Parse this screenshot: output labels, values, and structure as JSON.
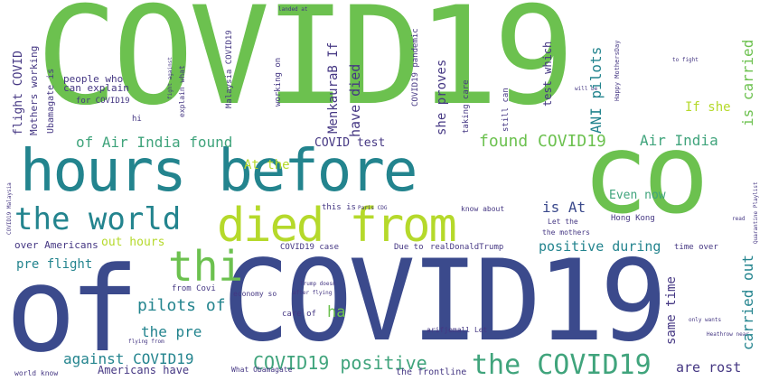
{
  "colors": {
    "green": "#6cc14f",
    "lime": "#b5d92b",
    "teal": "#23848e",
    "navy": "#3b4a8c",
    "seafoam": "#40a47c",
    "purple": "#453783"
  },
  "words": {
    "covid19_top": "COVID19",
    "hours_before": "hours before",
    "co": "co",
    "of": "of",
    "covid19_bottom": "COVID19",
    "the_world": "the world",
    "died_from": "died from",
    "thi": "thi",
    "of_air_india_found": "of Air India found",
    "found_covid19": "found COVID19",
    "air_india": "Air India",
    "covid_test": "COVID test",
    "the_covid19": "the COVID19",
    "covid19_positive": "COVID19 positive",
    "against_covid19": "against COVID19",
    "pilots_of": "pilots of",
    "the_pre": "the pre",
    "pre_flight": "pre flight",
    "positive_during": "positive during",
    "is_at": "is At",
    "at_the": "At the",
    "out_hours": "out hours",
    "over_americans": "over Americans",
    "americans_have": "Americans have",
    "same_time": "same time",
    "carried_out": "carried out",
    "is_carried": "is carried",
    "ani_pilots": "ANI pilots",
    "if_she": "If she",
    "she_proves": "she proves",
    "have_died": "have died",
    "menkaurab_if": "MenkauraB If",
    "test_which": "test which",
    "flight_covid": "flight COVID",
    "people_who": "people who",
    "can_explain": "can explain",
    "ha": "ha",
    "are_rost": "are rost",
    "even_now": "Even now",
    "hong_kong": "Hong Kong",
    "time_over": "time over",
    "the_frontline": "the frontline",
    "mothers_working": "Mothers working",
    "ubamagate_is": "Ubamagate is",
    "for_covid19": "for COVID19",
    "hi": "hi",
    "this_is": "this is",
    "covid19_case": "COVID19 case",
    "due_to": "Due to",
    "realdonaldtrump": "realDonaldTrump",
    "know_about": "know about",
    "let_the": "Let the",
    "the_mothers": "the mothers",
    "arifjemall_let": "arifjemall Let",
    "care_of": "care of",
    "from_covid": "from Covi",
    "economy_so": "economy so",
    "flying_from": "flying from",
    "paris_cdg": "Paris CDG",
    "malaysia_covid19": "Malaysia COVID19",
    "working_on": "working on",
    "covid19_pandemic": "COVID19 pandemic",
    "taking_care": "taking care",
    "still_can": "still can",
    "will_be": "will be",
    "happy_mothersday": "Happy MothersDay",
    "to_fight": "to fight",
    "landed_at": "landed at",
    "explain_what": "explain what",
    "fight_against": "fight against",
    "covid19_malaysia": "COVID19 Malaysia",
    "only_wants": "only wants",
    "heathrow_near": "Heathrow near",
    "quarantine_playlist": "Quarantine Playlist",
    "trump_doesn": "Trump doesn",
    "after_flying": "after flying",
    "what_obamagate": "What Obamagate",
    "world_know": "world know",
    "read": "read"
  }
}
